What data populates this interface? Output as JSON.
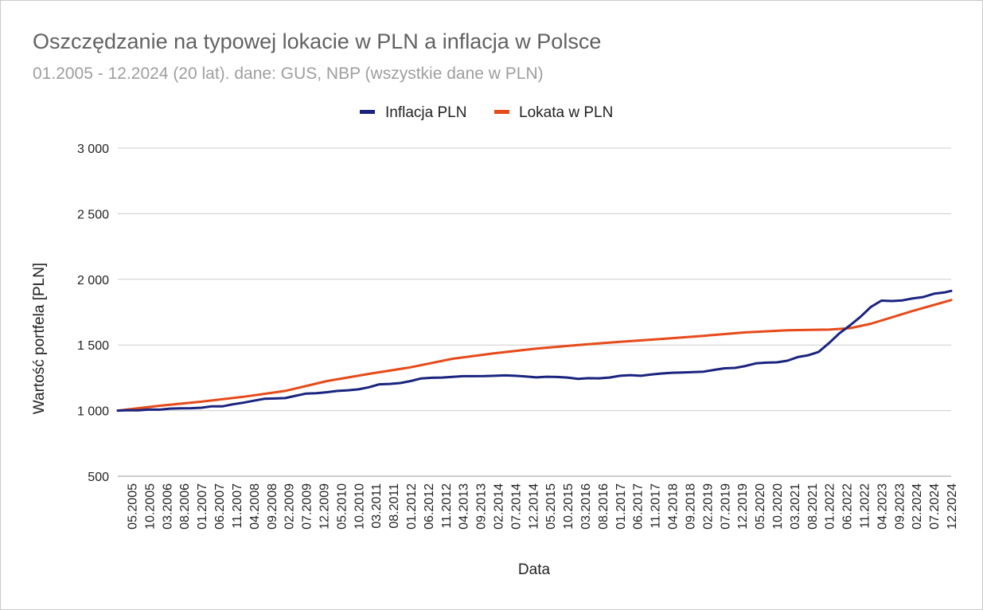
{
  "chart_data": {
    "type": "line",
    "title": "Oszczędzanie na typowej lokacie w PLN a inflacja w Polsce",
    "subtitle": "01.2005 - 12.2024 (20 lat). dane: GUS, NBP (wszystkie dane w PLN)",
    "xlabel": "Data",
    "ylabel": "Wartość portfela [PLN]",
    "ylim": [
      500,
      3000
    ],
    "y_ticks": [
      500,
      1000,
      1500,
      2000,
      2500,
      3000
    ],
    "y_tick_labels": [
      "500",
      "1 000",
      "1 500",
      "2 000",
      "2 500",
      "3 000"
    ],
    "x_range": [
      "01.2005",
      "12.2024"
    ],
    "x_tick_labels": [
      "05.2005",
      "10.2005",
      "03.2006",
      "08.2006",
      "01.2007",
      "06.2007",
      "11.2007",
      "04.2008",
      "09.2008",
      "02.2009",
      "07.2009",
      "12.2009",
      "05.2010",
      "10.2010",
      "03.2011",
      "08.2011",
      "01.2012",
      "06.2012",
      "11.2012",
      "04.2013",
      "09.2013",
      "02.2014",
      "07.2014",
      "12.2014",
      "05.2015",
      "10.2015",
      "03.2016",
      "08.2016",
      "01.2017",
      "06.2017",
      "11.2017",
      "04.2018",
      "09.2018",
      "02.2019",
      "07.2019",
      "12.2019",
      "05.2020",
      "10.2020",
      "03.2021",
      "08.2021",
      "01.2022",
      "06.2022",
      "11.2022",
      "04.2023",
      "09.2023",
      "02.2024",
      "07.2024",
      "12.2024"
    ],
    "grid": true,
    "legend_position": "top-center",
    "series": [
      {
        "name": "Inflacja PLN",
        "color": "#1a237e",
        "points": [
          [
            "01.2005",
            1000
          ],
          [
            "04.2005",
            1003
          ],
          [
            "07.2005",
            1002
          ],
          [
            "10.2005",
            1008
          ],
          [
            "01.2006",
            1007
          ],
          [
            "04.2006",
            1015
          ],
          [
            "07.2006",
            1017
          ],
          [
            "10.2006",
            1018
          ],
          [
            "01.2007",
            1022
          ],
          [
            "04.2007",
            1033
          ],
          [
            "07.2007",
            1032
          ],
          [
            "10.2007",
            1048
          ],
          [
            "01.2008",
            1060
          ],
          [
            "04.2008",
            1075
          ],
          [
            "07.2008",
            1090
          ],
          [
            "10.2008",
            1092
          ],
          [
            "01.2009",
            1095
          ],
          [
            "04.2009",
            1113
          ],
          [
            "07.2009",
            1130
          ],
          [
            "10.2009",
            1133
          ],
          [
            "01.2010",
            1140
          ],
          [
            "04.2010",
            1150
          ],
          [
            "07.2010",
            1155
          ],
          [
            "10.2010",
            1162
          ],
          [
            "01.2011",
            1178
          ],
          [
            "04.2011",
            1200
          ],
          [
            "07.2011",
            1203
          ],
          [
            "10.2011",
            1210
          ],
          [
            "01.2012",
            1225
          ],
          [
            "04.2012",
            1245
          ],
          [
            "07.2012",
            1250
          ],
          [
            "10.2012",
            1252
          ],
          [
            "01.2013",
            1257
          ],
          [
            "04.2013",
            1262
          ],
          [
            "07.2013",
            1262
          ],
          [
            "10.2013",
            1263
          ],
          [
            "01.2014",
            1265
          ],
          [
            "04.2014",
            1268
          ],
          [
            "07.2014",
            1265
          ],
          [
            "10.2014",
            1260
          ],
          [
            "01.2015",
            1253
          ],
          [
            "04.2015",
            1258
          ],
          [
            "07.2015",
            1256
          ],
          [
            "10.2015",
            1252
          ],
          [
            "01.2016",
            1242
          ],
          [
            "04.2016",
            1247
          ],
          [
            "07.2016",
            1246
          ],
          [
            "10.2016",
            1252
          ],
          [
            "01.2017",
            1265
          ],
          [
            "04.2017",
            1270
          ],
          [
            "07.2017",
            1265
          ],
          [
            "10.2017",
            1275
          ],
          [
            "01.2018",
            1283
          ],
          [
            "04.2018",
            1288
          ],
          [
            "07.2018",
            1290
          ],
          [
            "10.2018",
            1293
          ],
          [
            "01.2019",
            1297
          ],
          [
            "04.2019",
            1310
          ],
          [
            "07.2019",
            1322
          ],
          [
            "10.2019",
            1325
          ],
          [
            "01.2020",
            1340
          ],
          [
            "04.2020",
            1360
          ],
          [
            "07.2020",
            1365
          ],
          [
            "10.2020",
            1368
          ],
          [
            "01.2021",
            1380
          ],
          [
            "04.2021",
            1408
          ],
          [
            "07.2021",
            1422
          ],
          [
            "10.2021",
            1447
          ],
          [
            "01.2022",
            1515
          ],
          [
            "04.2022",
            1590
          ],
          [
            "07.2022",
            1650
          ],
          [
            "10.2022",
            1715
          ],
          [
            "01.2023",
            1790
          ],
          [
            "04.2023",
            1838
          ],
          [
            "07.2023",
            1835
          ],
          [
            "10.2023",
            1840
          ],
          [
            "01.2024",
            1855
          ],
          [
            "04.2024",
            1865
          ],
          [
            "07.2024",
            1890
          ],
          [
            "10.2024",
            1900
          ],
          [
            "12.2024",
            1912
          ]
        ]
      },
      {
        "name": "Lokata w PLN",
        "color": "#e64a19",
        "points": [
          [
            "01.2005",
            1000
          ],
          [
            "01.2006",
            1037
          ],
          [
            "01.2007",
            1068
          ],
          [
            "01.2008",
            1105
          ],
          [
            "01.2009",
            1150
          ],
          [
            "01.2010",
            1225
          ],
          [
            "01.2011",
            1280
          ],
          [
            "01.2012",
            1330
          ],
          [
            "01.2013",
            1395
          ],
          [
            "01.2014",
            1437
          ],
          [
            "01.2015",
            1472
          ],
          [
            "01.2016",
            1500
          ],
          [
            "01.2017",
            1524
          ],
          [
            "01.2018",
            1546
          ],
          [
            "01.2019",
            1570
          ],
          [
            "01.2020",
            1596
          ],
          [
            "01.2021",
            1612
          ],
          [
            "01.2022",
            1617
          ],
          [
            "07.2022",
            1628
          ],
          [
            "01.2023",
            1662
          ],
          [
            "01.2024",
            1760
          ],
          [
            "12.2024",
            1842
          ]
        ]
      }
    ]
  }
}
